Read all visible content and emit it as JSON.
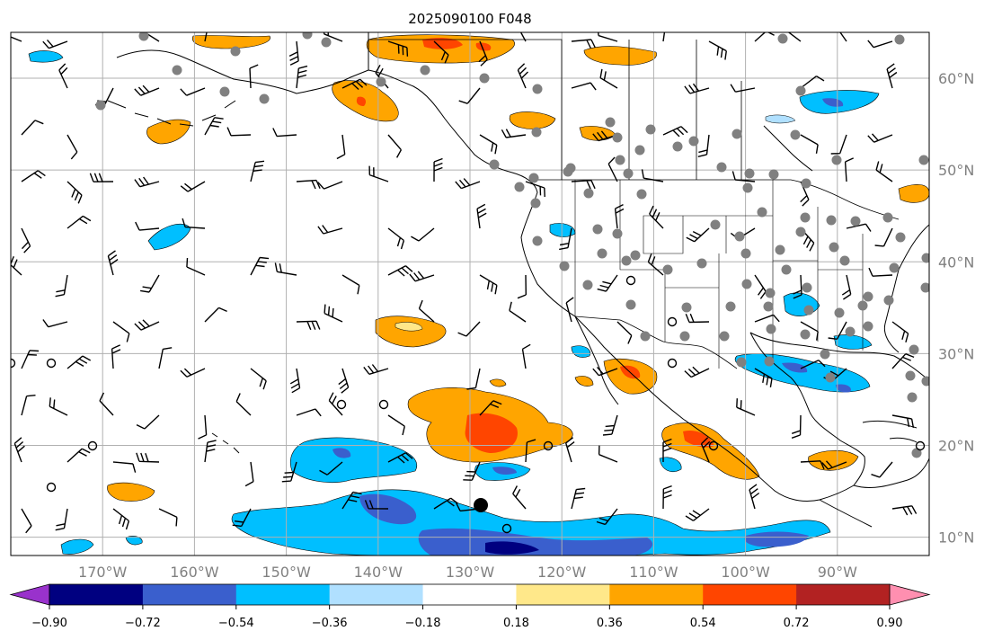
{
  "title": "2025090100 F048",
  "map": {
    "extent_lon": [
      -180,
      -80
    ],
    "extent_lat": [
      8,
      65
    ],
    "lat_ticks": [
      {
        "value": 60,
        "label": "60°N"
      },
      {
        "value": 50,
        "label": "50°N"
      },
      {
        "value": 40,
        "label": "40°N"
      },
      {
        "value": 30,
        "label": "30°N"
      },
      {
        "value": 20,
        "label": "20°N"
      },
      {
        "value": 10,
        "label": "10°N"
      }
    ],
    "lon_ticks": [
      {
        "value": -170,
        "label": "170°W"
      },
      {
        "value": -160,
        "label": "160°W"
      },
      {
        "value": -150,
        "label": "150°W"
      },
      {
        "value": -140,
        "label": "140°W"
      },
      {
        "value": -130,
        "label": "130°W"
      },
      {
        "value": -120,
        "label": "120°W"
      },
      {
        "value": -110,
        "label": "110°W"
      },
      {
        "value": -100,
        "label": "100°W"
      },
      {
        "value": -90,
        "label": "90°W"
      }
    ],
    "gridlines": true
  },
  "colorbar": {
    "levels": [
      -0.9,
      -0.72,
      -0.54,
      -0.36,
      -0.18,
      0.18,
      0.36,
      0.54,
      0.72,
      0.9
    ],
    "tick_labels": [
      "−0.90",
      "−0.72",
      "−0.54",
      "−0.36",
      "−0.18",
      "0.18",
      "0.36",
      "0.54",
      "0.72",
      "0.90"
    ],
    "colors": [
      "#000080",
      "#3a5fcd",
      "#00bfff",
      "#b0e0ff",
      "#ffffff",
      "#ffe88a",
      "#ffa500",
      "#ff4500",
      "#b22222"
    ],
    "under_color": "#9932cc",
    "over_color": "#ff8fb0",
    "extend": "both"
  },
  "colors": {
    "coast": "#000000",
    "barb": "#000000",
    "station_dot": "#808080",
    "grid": "#b0b0b0"
  }
}
